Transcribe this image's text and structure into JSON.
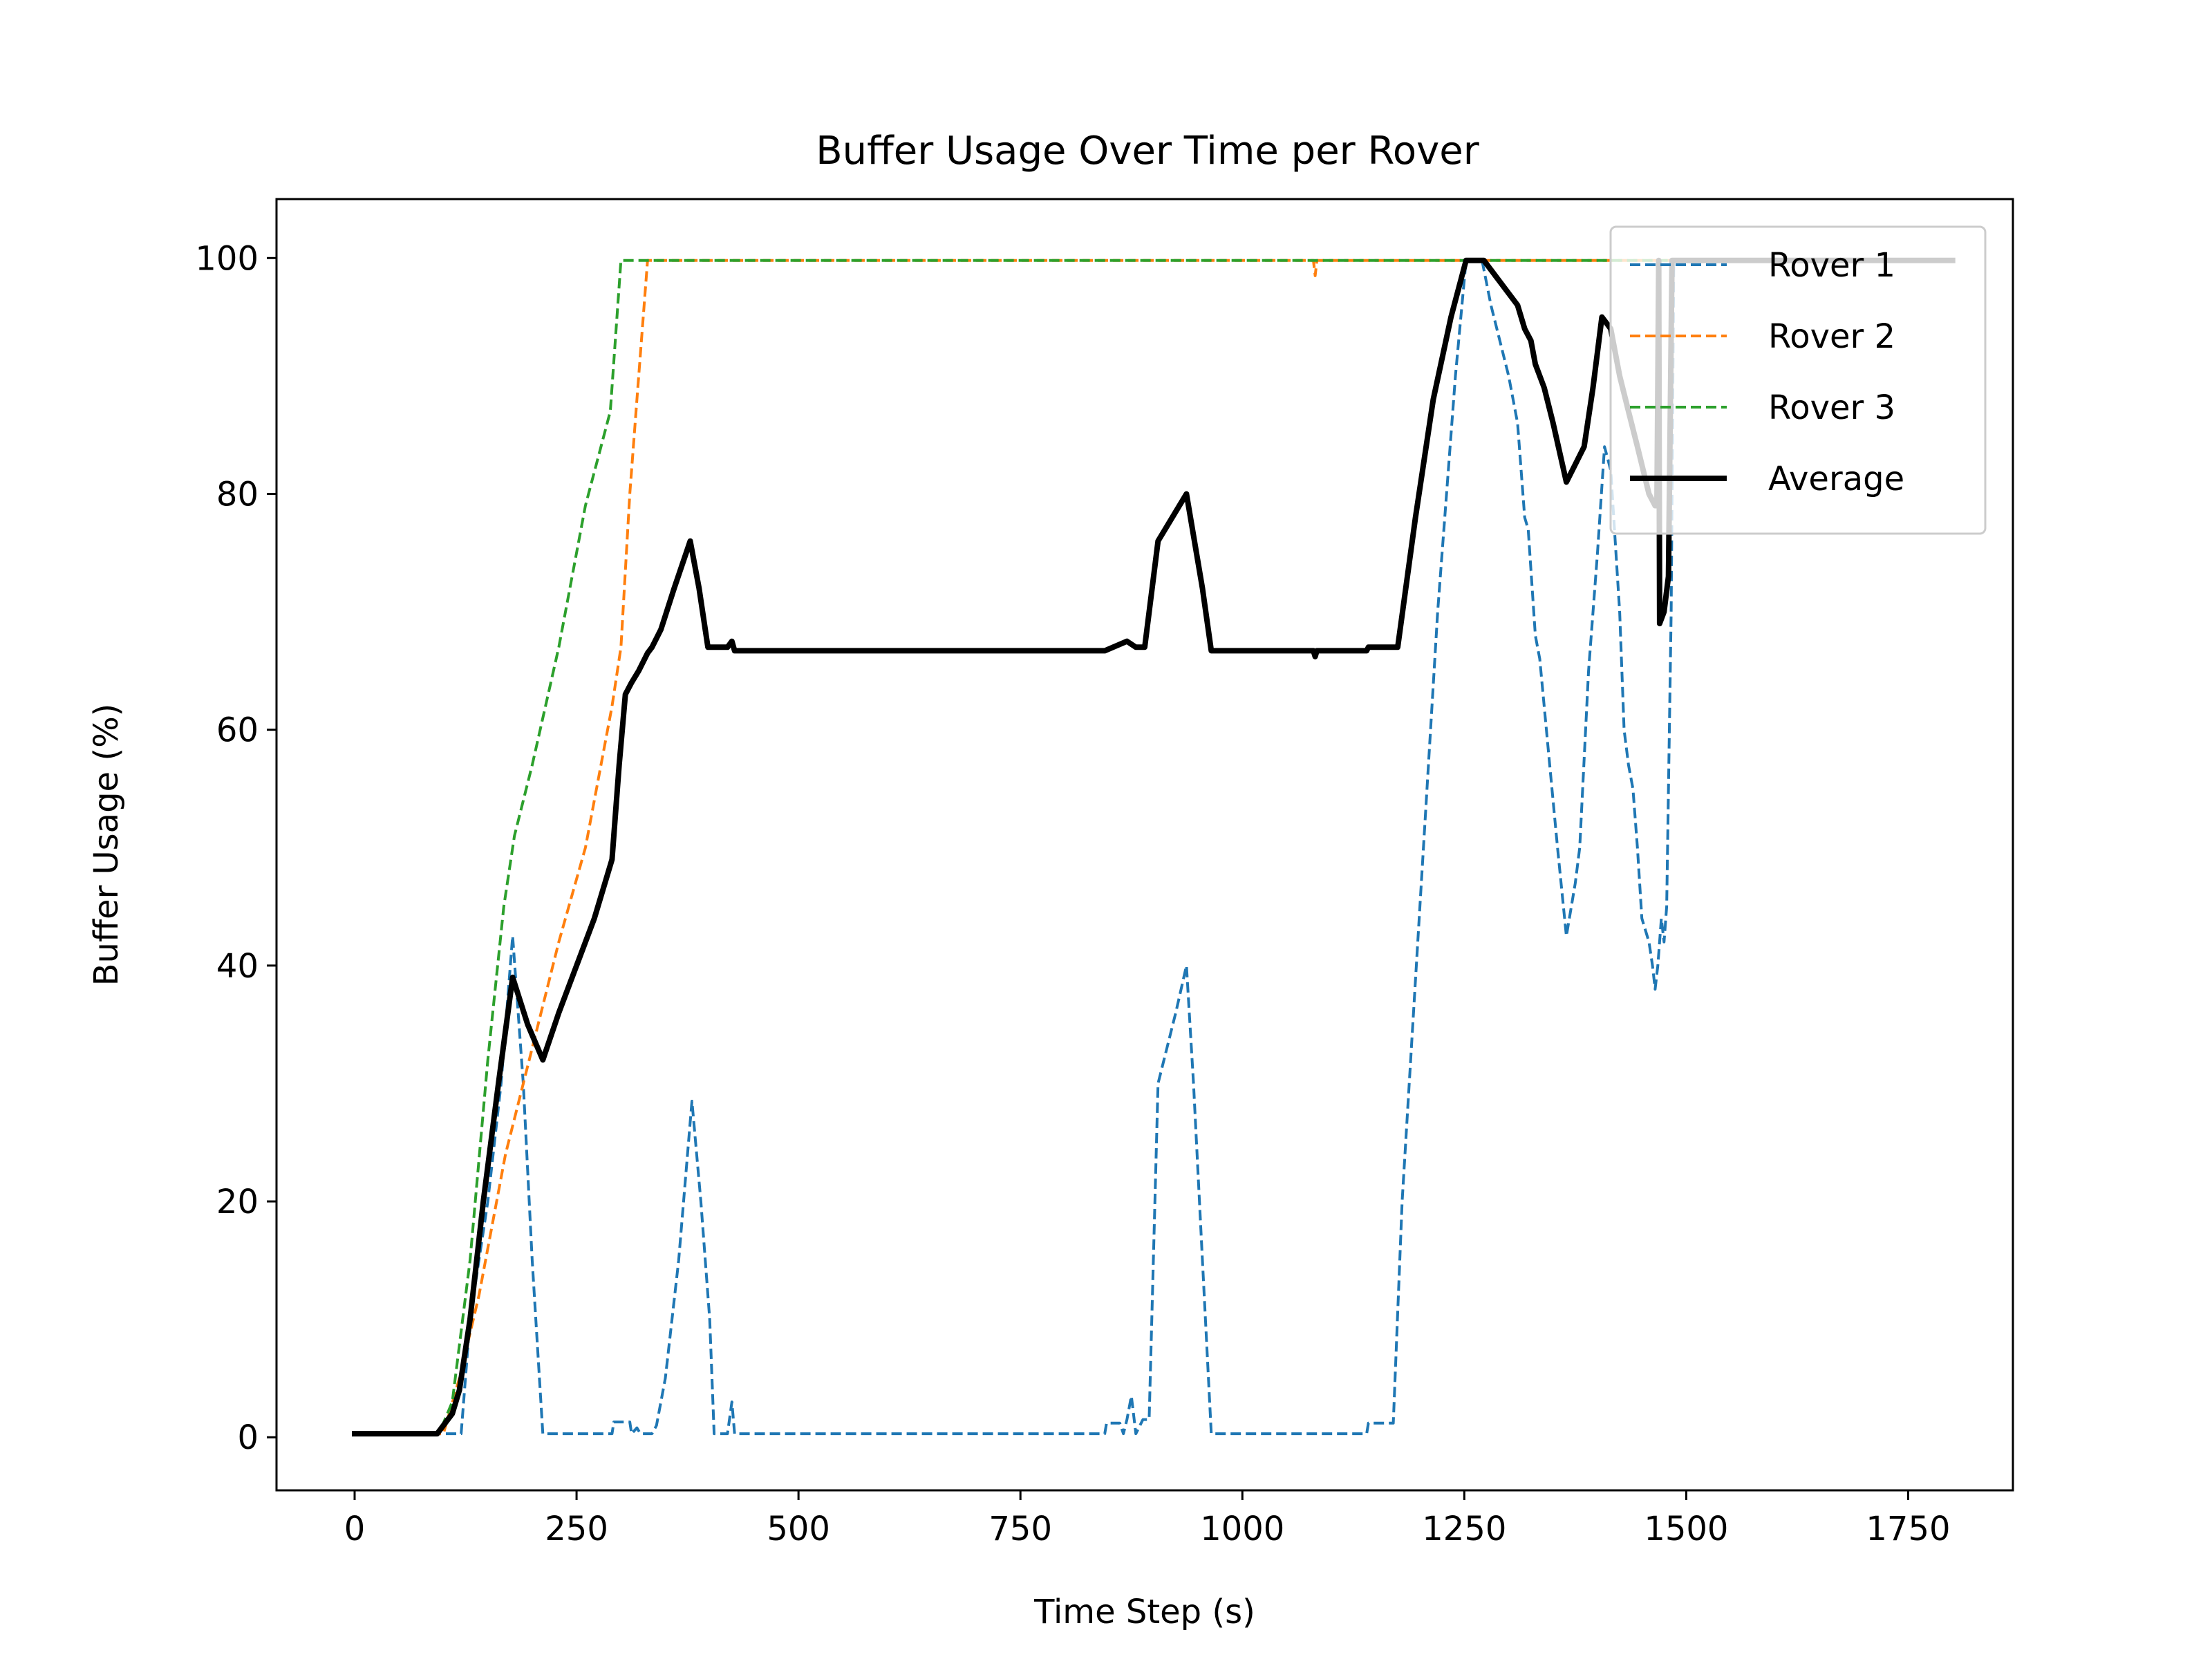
{
  "chart_data": {
    "type": "line",
    "title": "Buffer Usage Over Time per Rover",
    "xlabel": "Time Step (s)",
    "ylabel": "Buffer Usage (%)",
    "xlim": [
      -88,
      1868
    ],
    "ylim": [
      -4.5,
      105
    ],
    "xticks": [
      0,
      250,
      500,
      750,
      1000,
      1250,
      1500,
      1750
    ],
    "yticks": [
      0,
      20,
      40,
      60,
      80,
      100
    ],
    "grid": false,
    "legend_position": "top-right",
    "series": [
      {
        "name": "Rover 1",
        "color": "#1f77b4",
        "style": "dashed",
        "points": [
          [
            0,
            0.3
          ],
          [
            95,
            0.3
          ],
          [
            110,
            0.3
          ],
          [
            120,
            0.3
          ],
          [
            130,
            10
          ],
          [
            150,
            20
          ],
          [
            165,
            30
          ],
          [
            178,
            42.5
          ],
          [
            190,
            30
          ],
          [
            200,
            15
          ],
          [
            212,
            0.3
          ],
          [
            290,
            0.3
          ],
          [
            292,
            1.3
          ],
          [
            310,
            1.3
          ],
          [
            312,
            0.3
          ],
          [
            318,
            0.8
          ],
          [
            322,
            0.3
          ],
          [
            335,
            0.3
          ],
          [
            340,
            1
          ],
          [
            350,
            5
          ],
          [
            365,
            15
          ],
          [
            380,
            28.5
          ],
          [
            390,
            20
          ],
          [
            400,
            10
          ],
          [
            405,
            0.3
          ],
          [
            420,
            0.3
          ],
          [
            425,
            3
          ],
          [
            428,
            0.3
          ],
          [
            845,
            0.3
          ],
          [
            847,
            1.2
          ],
          [
            862,
            1.2
          ],
          [
            866,
            0.3
          ],
          [
            870,
            1.5
          ],
          [
            875,
            3.5
          ],
          [
            880,
            0.3
          ],
          [
            888,
            1.5
          ],
          [
            895,
            1.5
          ],
          [
            905,
            30
          ],
          [
            915,
            33
          ],
          [
            925,
            36
          ],
          [
            937,
            40
          ],
          [
            945,
            30
          ],
          [
            955,
            15
          ],
          [
            965,
            0.3
          ],
          [
            1140,
            0.3
          ],
          [
            1142,
            1.2
          ],
          [
            1170,
            1.2
          ],
          [
            1180,
            20
          ],
          [
            1200,
            45
          ],
          [
            1220,
            70
          ],
          [
            1240,
            90
          ],
          [
            1252,
            99.8
          ],
          [
            1270,
            99.8
          ],
          [
            1280,
            96
          ],
          [
            1300,
            90
          ],
          [
            1310,
            86
          ],
          [
            1318,
            78
          ],
          [
            1322,
            77
          ],
          [
            1330,
            68
          ],
          [
            1335,
            66
          ],
          [
            1345,
            58
          ],
          [
            1355,
            50
          ],
          [
            1365,
            42.5
          ],
          [
            1375,
            47
          ],
          [
            1380,
            50
          ],
          [
            1390,
            65
          ],
          [
            1400,
            75
          ],
          [
            1408,
            84
          ],
          [
            1415,
            82
          ],
          [
            1425,
            70
          ],
          [
            1430,
            60
          ],
          [
            1435,
            57
          ],
          [
            1440,
            55
          ],
          [
            1445,
            50
          ],
          [
            1450,
            44
          ],
          [
            1458,
            42
          ],
          [
            1462,
            40
          ],
          [
            1465,
            38
          ],
          [
            1468,
            40
          ],
          [
            1472,
            44
          ],
          [
            1475,
            42
          ],
          [
            1478,
            45
          ],
          [
            1483,
            70
          ],
          [
            1486,
            99.8
          ],
          [
            1800,
            99.8
          ]
        ]
      },
      {
        "name": "Rover 2",
        "color": "#ff7f0e",
        "style": "dashed",
        "points": [
          [
            0,
            0.3
          ],
          [
            100,
            0.3
          ],
          [
            118,
            5
          ],
          [
            140,
            12
          ],
          [
            170,
            24
          ],
          [
            200,
            33
          ],
          [
            230,
            42
          ],
          [
            260,
            50
          ],
          [
            290,
            62
          ],
          [
            300,
            67
          ],
          [
            310,
            80
          ],
          [
            318,
            88
          ],
          [
            330,
            99.8
          ],
          [
            1080,
            99.8
          ],
          [
            1082,
            98.5
          ],
          [
            1084,
            99.8
          ],
          [
            1800,
            99.8
          ]
        ]
      },
      {
        "name": "Rover 3",
        "color": "#2ca02c",
        "style": "dashed",
        "points": [
          [
            0,
            0.3
          ],
          [
            95,
            0.3
          ],
          [
            110,
            3
          ],
          [
            130,
            15
          ],
          [
            150,
            32
          ],
          [
            168,
            45
          ],
          [
            180,
            51
          ],
          [
            200,
            57
          ],
          [
            230,
            67
          ],
          [
            260,
            79
          ],
          [
            288,
            87
          ],
          [
            300,
            99.8
          ],
          [
            1800,
            99.8
          ]
        ]
      },
      {
        "name": "Average",
        "color": "#000000",
        "style": "solid",
        "points": [
          [
            0,
            0.3
          ],
          [
            93,
            0.3
          ],
          [
            110,
            2
          ],
          [
            118,
            4
          ],
          [
            130,
            10
          ],
          [
            145,
            20
          ],
          [
            162,
            30
          ],
          [
            178,
            39
          ],
          [
            195,
            35
          ],
          [
            212,
            32
          ],
          [
            230,
            36
          ],
          [
            250,
            40
          ],
          [
            270,
            44
          ],
          [
            290,
            49
          ],
          [
            298,
            57
          ],
          [
            305,
            63
          ],
          [
            312,
            64
          ],
          [
            320,
            65
          ],
          [
            330,
            66.5
          ],
          [
            335,
            67
          ],
          [
            345,
            68.5
          ],
          [
            360,
            72
          ],
          [
            378,
            76
          ],
          [
            388,
            72
          ],
          [
            398,
            67
          ],
          [
            420,
            67
          ],
          [
            425,
            67.5
          ],
          [
            428,
            66.7
          ],
          [
            845,
            66.7
          ],
          [
            870,
            67.5
          ],
          [
            880,
            67
          ],
          [
            890,
            67
          ],
          [
            905,
            76
          ],
          [
            937,
            80
          ],
          [
            955,
            72
          ],
          [
            965,
            66.7
          ],
          [
            1080,
            66.7
          ],
          [
            1082,
            66.2
          ],
          [
            1084,
            66.7
          ],
          [
            1140,
            66.7
          ],
          [
            1142,
            67
          ],
          [
            1175,
            67
          ],
          [
            1195,
            78
          ],
          [
            1215,
            88
          ],
          [
            1235,
            95
          ],
          [
            1252,
            99.8
          ],
          [
            1272,
            99.8
          ],
          [
            1290,
            98
          ],
          [
            1310,
            96
          ],
          [
            1318,
            94
          ],
          [
            1325,
            93
          ],
          [
            1330,
            91
          ],
          [
            1340,
            89
          ],
          [
            1350,
            86
          ],
          [
            1365,
            81
          ],
          [
            1375,
            82.5
          ],
          [
            1385,
            84
          ],
          [
            1395,
            89
          ],
          [
            1405,
            95
          ],
          [
            1415,
            94
          ],
          [
            1425,
            90
          ],
          [
            1435,
            87
          ],
          [
            1445,
            84
          ],
          [
            1458,
            80
          ],
          [
            1465,
            79
          ],
          [
            1467,
            79
          ],
          [
            1469,
            99.8
          ],
          [
            1470,
            69
          ],
          [
            1475,
            70
          ],
          [
            1480,
            73
          ],
          [
            1484,
            99.8
          ],
          [
            1800,
            99.8
          ]
        ]
      }
    ]
  }
}
